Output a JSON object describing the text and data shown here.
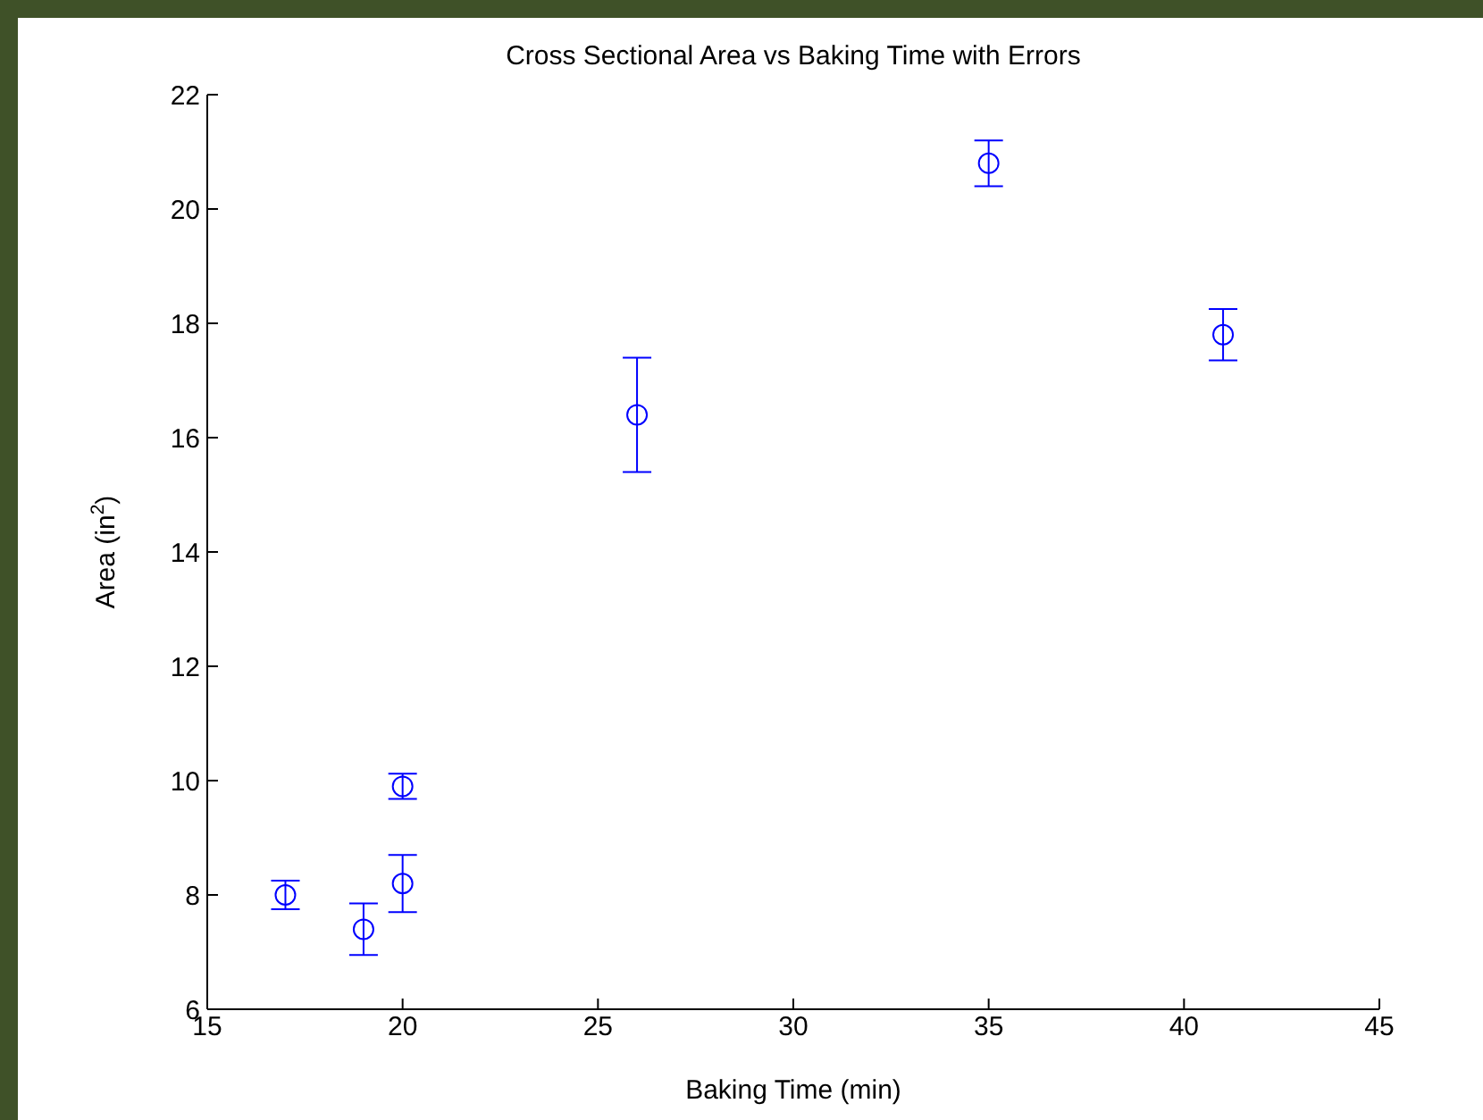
{
  "chart_data": {
    "type": "scatter",
    "title": "Cross Sectional Area vs Baking Time with Errors",
    "xlabel": "Baking Time (min)",
    "ylabel": "Area (in$^{2}$)",
    "x": [
      17,
      19,
      20,
      20,
      26,
      35,
      41
    ],
    "values": [
      8.0,
      7.4,
      8.2,
      9.9,
      16.4,
      20.8,
      17.8
    ],
    "errors": [
      0.25,
      0.45,
      0.5,
      0.22,
      1.0,
      0.4,
      0.45
    ],
    "color": "#0000ff",
    "marker": "circle",
    "grid": false,
    "xlim": [
      15,
      45
    ],
    "xticks": [
      15,
      20,
      25,
      30,
      35,
      40,
      45
    ],
    "ylim": [
      6,
      22
    ],
    "yticks": [
      6,
      8,
      10,
      12,
      14,
      16,
      18,
      20,
      22
    ]
  }
}
